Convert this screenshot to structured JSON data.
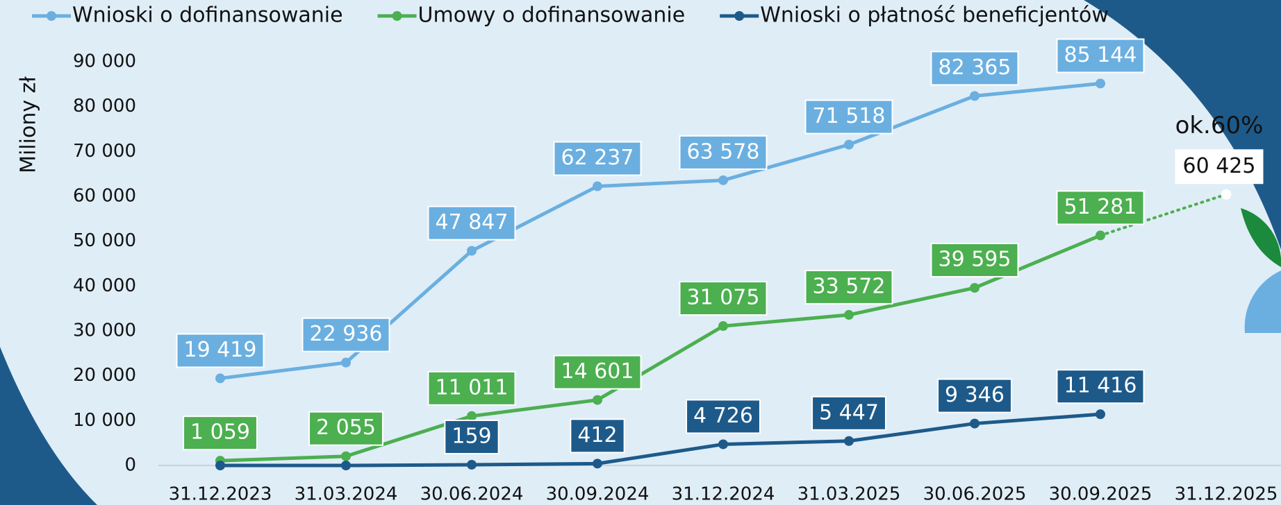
{
  "chart_data": {
    "type": "line",
    "y_label": "Miliony zł",
    "categories": [
      "31.12.2023",
      "31.03.2024",
      "30.06.2024",
      "30.09.2024",
      "31.12.2024",
      "31.03.2025",
      "30.06.2025",
      "30.09.2025",
      "31.12.2025"
    ],
    "series": [
      {
        "name": "Wnioski o dofinansowanie",
        "color": "#6aafe0",
        "values": [
          19419,
          22936,
          47847,
          62237,
          63578,
          71518,
          82365,
          85144,
          null
        ],
        "value_labels": [
          "19 419",
          "22 936",
          "47 847",
          "62 237",
          "63 578",
          "71 518",
          "82 365",
          "85 144",
          null
        ]
      },
      {
        "name": "Umowy o dofinansowanie",
        "color": "#4caf50",
        "values": [
          1059,
          2055,
          11011,
          14601,
          31075,
          33572,
          39595,
          51281,
          null
        ],
        "value_labels": [
          "1 059",
          "2 055",
          "11 011",
          "14 601",
          "31 075",
          "33 572",
          "39 595",
          "51 281",
          null
        ]
      },
      {
        "name": "Wnioski o płatność beneficjentów",
        "color": "#1d5a8a",
        "values": [
          0,
          0,
          159,
          412,
          4726,
          5447,
          9346,
          11416,
          null
        ],
        "value_labels": [
          null,
          null,
          "159",
          "412",
          "4 726",
          "5 447",
          "9 346",
          "11 416",
          null
        ]
      }
    ],
    "projection": {
      "series": 1,
      "category": 8,
      "value": 60425,
      "label": "60 425",
      "annotation": "ok.60%"
    },
    "ylim": [
      0,
      90000
    ],
    "yticks": [
      0,
      {
        "value": 10000,
        "label": "10 000"
      },
      {
        "value": 20000,
        "label": "20 000"
      },
      {
        "value": 30000,
        "label": "30 000"
      },
      {
        "value": 40000,
        "label": "40 000"
      },
      {
        "value": 50000,
        "label": "50 000"
      },
      {
        "value": 60000,
        "label": "60 000"
      },
      {
        "value": 70000,
        "label": "70 000"
      },
      {
        "value": 80000,
        "label": "80 000"
      },
      {
        "value": 90000,
        "label": "90 000"
      }
    ],
    "legend": "top"
  }
}
